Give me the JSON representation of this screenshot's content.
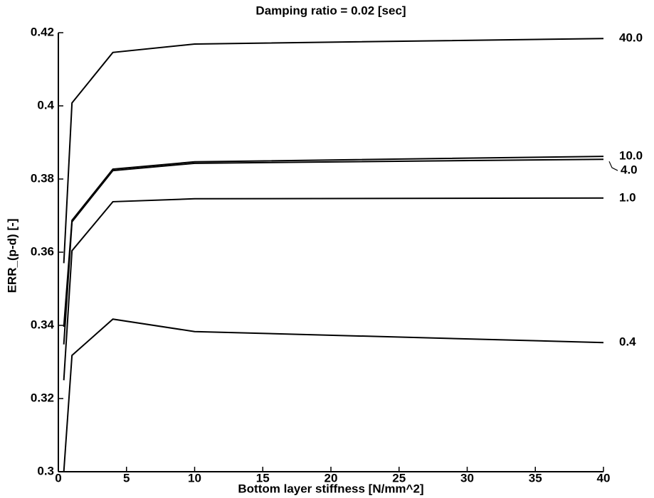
{
  "chart_data": {
    "type": "line",
    "title": "Damping ratio = 0.02 [sec]",
    "x_label": "Bottom layer stiffness [N/mm^2]",
    "y_label": "ERR_(p-d) [-]",
    "x": [
      0.4,
      1,
      4,
      10,
      40
    ],
    "series": [
      {
        "name": "40.0",
        "color": "#000000",
        "values": [
          0.357,
          0.4008,
          0.4146,
          0.4169,
          0.4184
        ]
      },
      {
        "name": "10.0",
        "color": "#000000",
        "values": [
          0.3396,
          0.3687,
          0.3827,
          0.3847,
          0.3862
        ]
      },
      {
        "name": "4.0",
        "color": "#000000",
        "values": [
          0.3348,
          0.3683,
          0.3823,
          0.3843,
          0.3854
        ]
      },
      {
        "name": "1.0",
        "color": "#000000",
        "values": [
          0.325,
          0.3604,
          0.3738,
          0.3746,
          0.3748
        ]
      },
      {
        "name": "0.4",
        "color": "#000000",
        "values": [
          0.3,
          0.3318,
          0.3417,
          0.3383,
          0.3353
        ]
      }
    ],
    "xlim": [
      0,
      40
    ],
    "xticks": [
      0,
      5,
      10,
      15,
      20,
      25,
      30,
      35,
      40
    ],
    "ylim": [
      0.3,
      0.42
    ],
    "yticks": [
      0.3,
      0.32,
      0.34,
      0.36,
      0.38,
      0.4,
      0.42
    ]
  }
}
